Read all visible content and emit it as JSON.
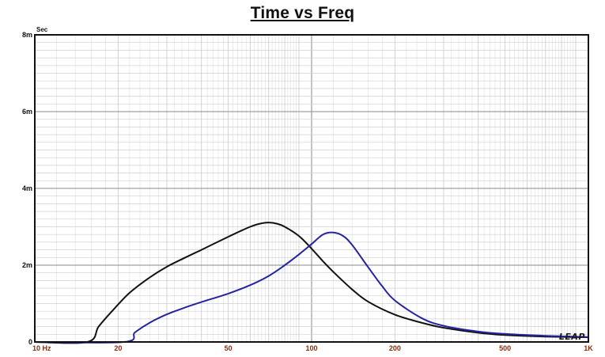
{
  "chart_data": {
    "type": "line",
    "title": "Time vs Freq",
    "y_unit": "Sec",
    "x_scale": "log",
    "xlim": [
      10,
      1000
    ],
    "ylim": [
      0,
      0.008
    ],
    "grid": true,
    "x_ticks": [
      {
        "value": 10,
        "label": "10  Hz"
      },
      {
        "value": 20,
        "label": "20"
      },
      {
        "value": 50,
        "label": "50"
      },
      {
        "value": 100,
        "label": "100"
      },
      {
        "value": 200,
        "label": "200"
      },
      {
        "value": 500,
        "label": "500"
      },
      {
        "value": 1000,
        "label": "1K"
      }
    ],
    "y_ticks": [
      {
        "value": 0,
        "label": "0"
      },
      {
        "value": 0.002,
        "label": "2m"
      },
      {
        "value": 0.004,
        "label": "4m"
      },
      {
        "value": 0.006,
        "label": "6m"
      },
      {
        "value": 0.008,
        "label": "8m"
      }
    ],
    "series": [
      {
        "color": "#111111",
        "x": [
          10,
          15.5,
          17,
          19,
          22,
          26,
          30,
          35,
          40,
          45,
          50,
          55,
          60,
          65,
          70,
          75,
          80,
          90,
          100,
          110,
          120,
          140,
          160,
          200,
          250,
          300,
          400,
          500,
          700,
          1000
        ],
        "y": [
          0,
          0,
          0.0004,
          0.0008,
          0.00128,
          0.00168,
          0.00196,
          0.0022,
          0.0024,
          0.00258,
          0.00274,
          0.00288,
          0.003,
          0.00308,
          0.00311,
          0.00308,
          0.003,
          0.00276,
          0.00243,
          0.0021,
          0.00182,
          0.00137,
          0.00105,
          0.00071,
          0.0005,
          0.00037,
          0.00024,
          0.00018,
          0.00014,
          0.00012
        ]
      },
      {
        "color": "#2424a0",
        "x": [
          10,
          21,
          23,
          26,
          30,
          35,
          40,
          50,
          60,
          70,
          80,
          90,
          100,
          110,
          120,
          130,
          140,
          160,
          180,
          200,
          250,
          300,
          400,
          500,
          700,
          1000
        ],
        "y": [
          0,
          0,
          0.00025,
          0.0005,
          0.00072,
          0.0009,
          0.00104,
          0.00126,
          0.00148,
          0.00172,
          0.002,
          0.00228,
          0.00255,
          0.0028,
          0.00285,
          0.00276,
          0.00253,
          0.00195,
          0.00145,
          0.00108,
          0.00062,
          0.00042,
          0.00027,
          0.00021,
          0.00016,
          0.00013
        ]
      }
    ]
  },
  "logo_text": "LEAP"
}
